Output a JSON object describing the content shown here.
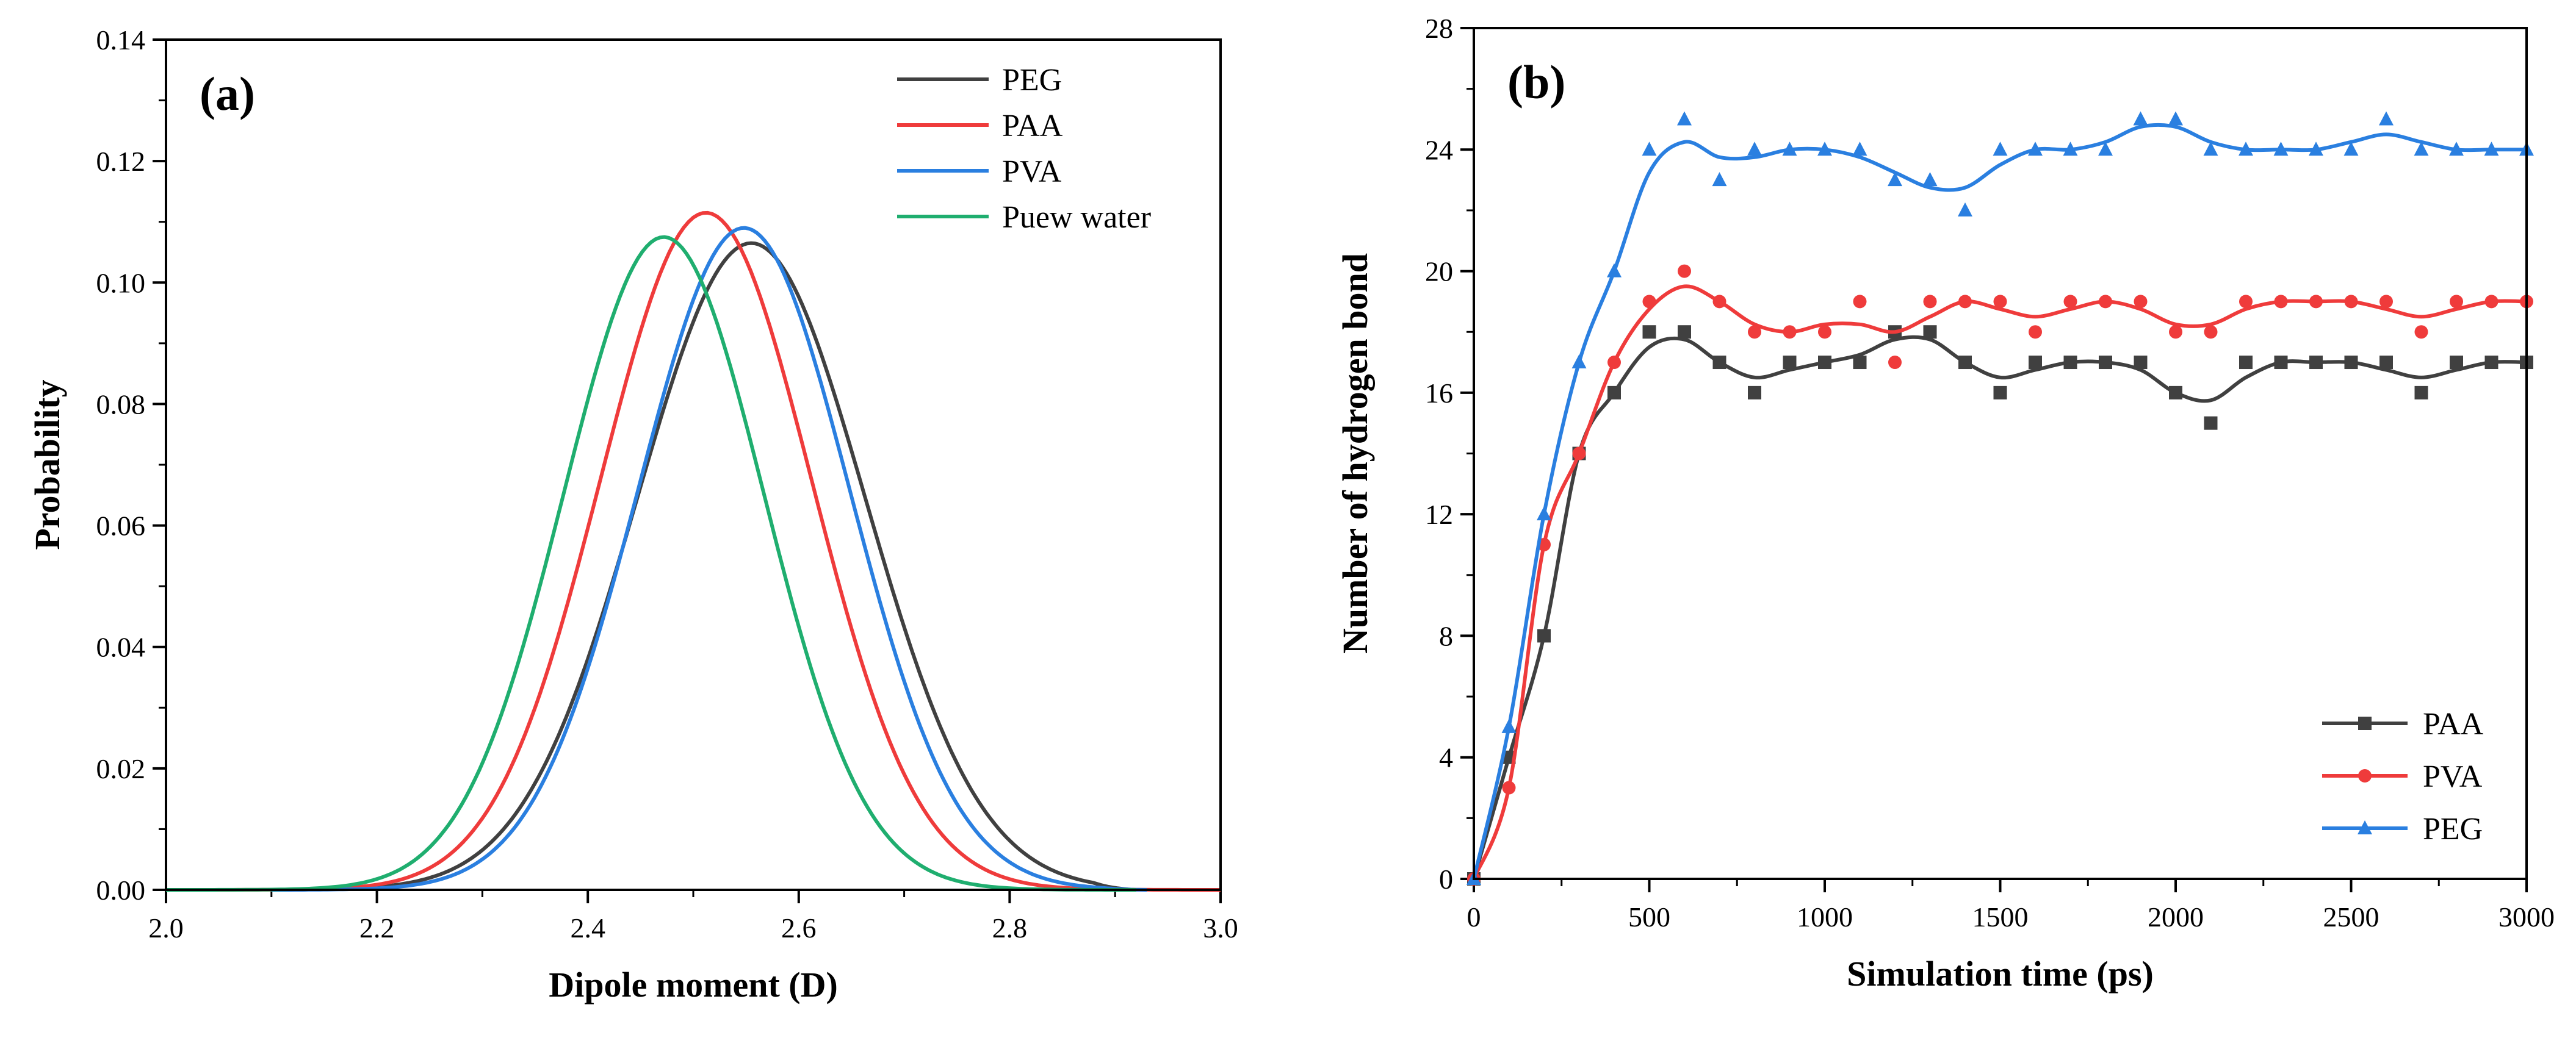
{
  "chart_data": [
    {
      "type": "line",
      "panel_label": "(a)",
      "xlabel": "Dipole moment (D)",
      "ylabel": "Probability",
      "xlim": [
        2.0,
        3.0
      ],
      "ylim": [
        0.0,
        0.14
      ],
      "xticks": [
        "2.0",
        "2.2",
        "2.4",
        "2.6",
        "2.8",
        "3.0"
      ],
      "yticks": [
        "0.00",
        "0.02",
        "0.04",
        "0.06",
        "0.08",
        "0.10",
        "0.12",
        "0.14"
      ],
      "legend_position": "top-right",
      "series": [
        {
          "name": "PEG",
          "color": "#404040",
          "mu": 2.555,
          "sigma": 0.108,
          "peak": 0.1065,
          "xmin": 2.1,
          "xmax": 2.92
        },
        {
          "name": "PAA",
          "color": "#ef3b3b",
          "mu": 2.512,
          "sigma": 0.1,
          "peak": 0.1115,
          "xmin": 2.0,
          "xmax": 3.0
        },
        {
          "name": "PVA",
          "color": "#2a7fe0",
          "mu": 2.548,
          "sigma": 0.1,
          "peak": 0.109,
          "xmin": 2.1,
          "xmax": 2.93
        },
        {
          "name": "Puew water",
          "color": "#1fae6f",
          "mu": 2.472,
          "sigma": 0.095,
          "peak": 0.1075,
          "xmin": 2.0,
          "xmax": 2.92
        }
      ]
    },
    {
      "type": "line",
      "panel_label": "(b)",
      "xlabel": "Simulation time (ps)",
      "ylabel": "Number of hydrogen bond",
      "xlim": [
        0,
        3000
      ],
      "ylim": [
        0,
        28
      ],
      "xticks": [
        "0",
        "500",
        "1000",
        "1500",
        "2000",
        "2500",
        "3000"
      ],
      "yticks": [
        "0",
        "4",
        "8",
        "12",
        "16",
        "20",
        "24",
        "28"
      ],
      "legend_position": "bottom-right",
      "x": [
        0,
        100,
        200,
        300,
        400,
        500,
        600,
        700,
        800,
        900,
        1000,
        1100,
        1200,
        1300,
        1400,
        1500,
        1600,
        1700,
        1800,
        1900,
        2000,
        2100,
        2200,
        2300,
        2400,
        2500,
        2600,
        2700,
        2800,
        2900,
        3000
      ],
      "series": [
        {
          "name": "PAA",
          "color": "#404040",
          "marker": "square",
          "values": [
            0,
            4,
            8,
            14,
            16,
            18,
            18,
            17,
            16,
            17,
            17,
            17,
            18,
            18,
            17,
            16,
            17,
            17,
            17,
            17,
            16,
            15,
            17,
            17,
            17,
            17,
            17,
            16,
            17,
            17,
            17
          ]
        },
        {
          "name": "PVA",
          "color": "#ef3b3b",
          "marker": "circle",
          "values": [
            0,
            3,
            11,
            14,
            17,
            19,
            20,
            19,
            18,
            18,
            18,
            19,
            17,
            19,
            19,
            19,
            18,
            19,
            19,
            19,
            18,
            18,
            19,
            19,
            19,
            19,
            19,
            18,
            19,
            19,
            19
          ]
        },
        {
          "name": "PEG",
          "color": "#2a7fe0",
          "marker": "triangle",
          "values": [
            0,
            5,
            12,
            17,
            20,
            24,
            25,
            23,
            24,
            24,
            24,
            24,
            23,
            23,
            22,
            24,
            24,
            24,
            24,
            25,
            25,
            24,
            24,
            24,
            24,
            24,
            25,
            24,
            24,
            24,
            24
          ]
        }
      ]
    }
  ]
}
